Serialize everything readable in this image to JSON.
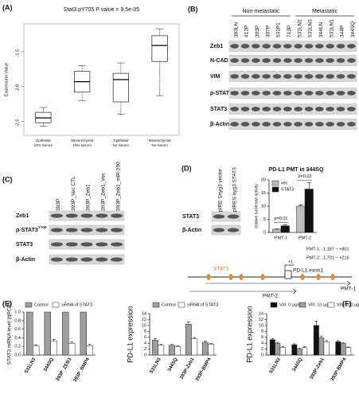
{
  "chart_data": [
    {
      "type": "box",
      "label": "(A)",
      "title": "Stat3.pY705  P value = 9.5e-05",
      "y_label": "Expression Value",
      "categories": [
        "Epithelial 10% Serum",
        "Mesenchymal 10% Serum",
        "Epithelial No Serum",
        "Mesenchymal No Serum"
      ],
      "boxes": [
        {
          "min": -2.57,
          "q1": -2.52,
          "median": -2.45,
          "q3": -2.37,
          "max": -2.3
        },
        {
          "min": -2.2,
          "q1": -2.08,
          "median": -1.93,
          "q3": -1.78,
          "max": -1.7
        },
        {
          "min": -2.4,
          "q1": -2.22,
          "median": -1.9,
          "q3": -1.81,
          "max": -1.66
        },
        {
          "min": -2.13,
          "q1": -1.64,
          "median": -1.41,
          "q3": -1.27,
          "max": -1.17
        }
      ],
      "ylim": [
        -2.7,
        -1.1
      ],
      "yticks": [
        -2.5,
        {
          "value": -2,
          "label": "-2.0"
        },
        -1.5
      ]
    },
    {
      "type": "bar",
      "title": "PD-L1 PMT in 344SQ",
      "y_label": "relative luciferase activity",
      "categories": [
        "PMT-1",
        "PMT-2"
      ],
      "series": [
        {
          "name": "vec",
          "color": "#bdbdbd",
          "values": [
            1.2,
            10
          ],
          "errors": [
            0.2,
            0.5
          ]
        },
        {
          "name": "STAT3",
          "color": "#111111",
          "values": [
            2.5,
            16.5
          ],
          "errors": [
            0.4,
            2.5
          ]
        }
      ],
      "annotations": [
        "p=0.01",
        "p=0.02"
      ],
      "ylim": [
        0,
        20
      ],
      "yticks": [
        0,
        5,
        10,
        15,
        20
      ]
    },
    {
      "type": "bar",
      "label": "(E)",
      "y_label": "STAT3 mRNA level (qPCR)",
      "categories": [
        "531LN3",
        "344SQ",
        "393P_ZEB1",
        "393P_BMP4"
      ],
      "series": [
        {
          "name": "Control",
          "color": "#9e9e9e",
          "values": [
            1,
            1,
            1,
            1
          ]
        },
        {
          "name": "siRNA of STAT3",
          "color": "#ffffff",
          "values": [
            0.22,
            0.33,
            0.27,
            0.22
          ],
          "errors": [
            0.02,
            0.03,
            0.04,
            0.03
          ]
        }
      ],
      "ylim": [
        0,
        1
      ],
      "yticks": [
        {
          "value": 0,
          "label": "0.0"
        },
        0.2,
        0.4,
        0.6,
        0.8,
        {
          "value": 1,
          "label": "1.0"
        }
      ]
    },
    {
      "type": "bar",
      "y_label": "PD-L1 expression",
      "categories": [
        "531LN3",
        "344SQ",
        "393P-Zeb1",
        "393P-BMP4"
      ],
      "series": [
        {
          "name": "Control",
          "color": "#9e9e9e",
          "values": [
            5,
            3.3,
            10.4,
            4.3
          ],
          "errors": [
            0.6,
            0.3,
            0.8,
            0.4
          ]
        },
        {
          "name": "siRNA of STAT3",
          "color": "#ffffff",
          "values": [
            3.3,
            2.9,
            5.5,
            3.7
          ],
          "errors": [
            0.3,
            0.2,
            0.4,
            0.2
          ]
        }
      ],
      "ylim": [
        0,
        14
      ],
      "yticks": [
        0,
        2,
        4,
        6,
        8,
        10,
        12,
        14
      ]
    },
    {
      "type": "bar",
      "label": "(F)",
      "y_label": "PD-L1 expression",
      "categories": [
        "531LN3",
        "344SQ",
        "393P-Zeb1",
        "393P-BMP4"
      ],
      "series": [
        {
          "name": "VIII: 0 µg/ml",
          "color": "#111111",
          "values": [
            5.2,
            3.5,
            10,
            4.5
          ],
          "errors": [
            0.4,
            0.3,
            1.5,
            0.4
          ]
        },
        {
          "name": "VIII: 10 µg/ml",
          "color": "#9e9e9e",
          "values": [
            4,
            2,
            5.8,
            3.9
          ],
          "errors": [
            0.3,
            0.3,
            0.6,
            0.3
          ]
        },
        {
          "name": "VIII: 100 µg/ml",
          "color": "#ffffff",
          "values": [
            2.6,
            2.5,
            4.5,
            2.5
          ],
          "errors": [
            0.2,
            0.3,
            0.4,
            0.2
          ]
        }
      ],
      "ylim": [
        0,
        14
      ],
      "yticks": [
        0,
        2,
        4,
        6,
        8,
        10,
        12,
        14
      ]
    }
  ],
  "blots": [
    {
      "label": "(B)",
      "groups": [
        "Non-metastatic",
        "Metastatic"
      ],
      "lanes": [
        "393LN",
        "412P",
        "393P",
        "307P",
        "531P1",
        "713P",
        "531LN2",
        "531LN3",
        "344LN",
        "531LN1",
        "344P",
        "344SQ"
      ],
      "rows": [
        {
          "name": "Zeb1"
        },
        {
          "name": "N-CAD"
        },
        {
          "name": "VIM"
        },
        {
          "name": "p-STAT3",
          "sup": "Y705"
        },
        {
          "name": "STAT3"
        },
        {
          "name": "β-Actin"
        }
      ]
    },
    {
      "label": "(C)",
      "lanes": [
        "393P",
        "393P_Vec CTL",
        "393P_Zeb1",
        "393P_Zeb1_Vec",
        "393P_Zeb1_miR-200"
      ],
      "rows": [
        {
          "name": "Zeb1"
        },
        {
          "name": "p-STAT3",
          "sup": "Y705"
        },
        {
          "name": "STAT3"
        },
        {
          "name": "β-Actin"
        }
      ]
    },
    {
      "label": "(D)",
      "lanes": [
        "pIRE Shyg3 vector",
        "pIRES hyg3 STAT3"
      ],
      "rows": [
        {
          "name": "STAT3"
        },
        {
          "name": "β-Actin"
        }
      ]
    }
  ],
  "diagram": {
    "motif": "STAT3",
    "start": "+1",
    "exon": "PD-L1 exon1",
    "regions": [
      "PMT-1",
      "PMT-2"
    ],
    "ranges": [
      "PMT-1: -1,187 ~ +801",
      "PMT-2: -1,701 ~ +216"
    ]
  }
}
